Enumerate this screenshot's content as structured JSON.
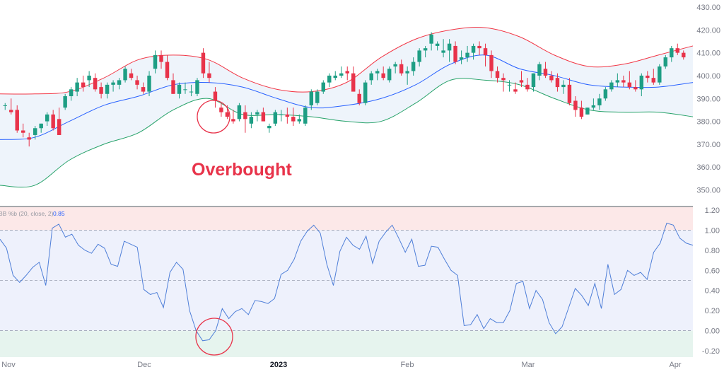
{
  "colors": {
    "upper_band": "#f23645",
    "lower_band": "#26a269",
    "basis": "#2962ff",
    "band_fill": "#eef4fb",
    "bull": "#1e9e84",
    "bear": "#e8334a",
    "pb_line": "#4f7fd8",
    "overbought_zone": "#fce8e8",
    "neutral_zone": "#eef1fc",
    "oversold_zone": "#e6f4ee",
    "annotation": "#e8334a",
    "grid": "#d1d4dc"
  },
  "chart_data": [
    {
      "type": "candlestick",
      "annotation": "Overbought",
      "ylim": [
        345,
        432
      ],
      "y_ticks": [
        "430.00",
        "420.00",
        "410.00",
        "400.00",
        "390.00",
        "380.00",
        "370.00",
        "360.00",
        "350.00"
      ],
      "x_ticks": [
        "Nov",
        "Dec",
        "2023",
        "Feb",
        "Mar",
        "Apr"
      ],
      "candles": [
        [
          387,
          388,
          385,
          387
        ],
        [
          385,
          390,
          383,
          384
        ],
        [
          385,
          387,
          375,
          376
        ],
        [
          376,
          379,
          373,
          375
        ],
        [
          373,
          375,
          369,
          372
        ],
        [
          374,
          378,
          372,
          377
        ],
        [
          377,
          379,
          375,
          379
        ],
        [
          380,
          384,
          378,
          383
        ],
        [
          383,
          385,
          376,
          377
        ],
        [
          381,
          386,
          374,
          374
        ],
        [
          386,
          392,
          385,
          391
        ],
        [
          391,
          395,
          389,
          394
        ],
        [
          393,
          399,
          391,
          397
        ],
        [
          397,
          400,
          393,
          395
        ],
        [
          398,
          402,
          395,
          400
        ],
        [
          399,
          401,
          393,
          394
        ],
        [
          395,
          397,
          390,
          392
        ],
        [
          392,
          397,
          390,
          396
        ],
        [
          396,
          398,
          393,
          397
        ],
        [
          396,
          399,
          394,
          398
        ],
        [
          398,
          404,
          397,
          403
        ],
        [
          401,
          403,
          398,
          399
        ],
        [
          398,
          400,
          394,
          396
        ],
        [
          395,
          397,
          392,
          393
        ],
        [
          393,
          402,
          391,
          400
        ],
        [
          403,
          411,
          401,
          409
        ],
        [
          409,
          411,
          403,
          406
        ],
        [
          406,
          409,
          398,
          399
        ],
        [
          398,
          401,
          392,
          392
        ],
        [
          392,
          397,
          390,
          396
        ],
        [
          394,
          397,
          392,
          394
        ],
        [
          393,
          396,
          391,
          393
        ],
        [
          392,
          399,
          391,
          398
        ],
        [
          410,
          412,
          399,
          401
        ],
        [
          401,
          406,
          397,
          399
        ],
        [
          393,
          395,
          386,
          389
        ],
        [
          386,
          388,
          382,
          384
        ],
        [
          384,
          387,
          381,
          382
        ],
        [
          381,
          385,
          379,
          380
        ],
        [
          381,
          388,
          380,
          387
        ],
        [
          384,
          387,
          375,
          381
        ],
        [
          379,
          384,
          377,
          382
        ],
        [
          383,
          385,
          380,
          384
        ],
        [
          384,
          386,
          380,
          380
        ],
        [
          377,
          379,
          375,
          378
        ],
        [
          379,
          385,
          378,
          384
        ],
        [
          383,
          385,
          380,
          383
        ],
        [
          383,
          386,
          379,
          382
        ],
        [
          382,
          386,
          378,
          380
        ],
        [
          380,
          383,
          379,
          381
        ],
        [
          379,
          387,
          378,
          386
        ],
        [
          387,
          394,
          385,
          393
        ],
        [
          388,
          394,
          387,
          393
        ],
        [
          393,
          398,
          392,
          397
        ],
        [
          397,
          401,
          395,
          400
        ],
        [
          399,
          402,
          398,
          400
        ],
        [
          400,
          404,
          399,
          401
        ],
        [
          402,
          404,
          398,
          401
        ],
        [
          401,
          404,
          393,
          393
        ],
        [
          392,
          394,
          387,
          388
        ],
        [
          388,
          398,
          387,
          397
        ],
        [
          398,
          402,
          396,
          401
        ],
        [
          401,
          403,
          398,
          402
        ],
        [
          401,
          404,
          398,
          399
        ],
        [
          398,
          404,
          397,
          403
        ],
        [
          404,
          406,
          401,
          405
        ],
        [
          405,
          407,
          400,
          401
        ],
        [
          401,
          404,
          396,
          402
        ],
        [
          402,
          408,
          400,
          406
        ],
        [
          406,
          412,
          404,
          411
        ],
        [
          411,
          413,
          408,
          412
        ],
        [
          414,
          419,
          411,
          418
        ],
        [
          413,
          415,
          411,
          414
        ],
        [
          410,
          416,
          408,
          411
        ],
        [
          411,
          416,
          406,
          414
        ],
        [
          413,
          415,
          405,
          406
        ],
        [
          407,
          411,
          405,
          408
        ],
        [
          408,
          413,
          406,
          410
        ],
        [
          410,
          414,
          407,
          413
        ],
        [
          413,
          415,
          409,
          412
        ],
        [
          412,
          414,
          404,
          409
        ],
        [
          409,
          411,
          399,
          402
        ],
        [
          402,
          404,
          397,
          399
        ],
        [
          399,
          401,
          393,
          398
        ],
        [
          396,
          398,
          393,
          396
        ],
        [
          394,
          397,
          392,
          393
        ],
        [
          398,
          402,
          395,
          397
        ],
        [
          396,
          399,
          393,
          394
        ],
        [
          395,
          401,
          393,
          401
        ],
        [
          400,
          406,
          398,
          405
        ],
        [
          403,
          406,
          399,
          400
        ],
        [
          400,
          402,
          397,
          398
        ],
        [
          399,
          401,
          393,
          395
        ],
        [
          395,
          398,
          392,
          396
        ],
        [
          396,
          399,
          387,
          388
        ],
        [
          389,
          391,
          382,
          385
        ],
        [
          386,
          389,
          381,
          382
        ],
        [
          383,
          386,
          383,
          386
        ],
        [
          386,
          390,
          385,
          387
        ],
        [
          387,
          392,
          385,
          390
        ],
        [
          390,
          395,
          389,
          394
        ],
        [
          394,
          398,
          393,
          397
        ],
        [
          397,
          401,
          395,
          398
        ],
        [
          398,
          400,
          395,
          397
        ],
        [
          397,
          402,
          394,
          395
        ],
        [
          395,
          398,
          393,
          394
        ],
        [
          394,
          401,
          391,
          400
        ],
        [
          400,
          402,
          397,
          399
        ],
        [
          399,
          403,
          396,
          397
        ],
        [
          397,
          405,
          396,
          404
        ],
        [
          404,
          409,
          403,
          408
        ],
        [
          408,
          413,
          406,
          412
        ],
        [
          412,
          414,
          409,
          410
        ],
        [
          410,
          411,
          407,
          408
        ]
      ],
      "upper_band": [
        [
          0,
          392
        ],
        [
          0.05,
          392
        ],
        [
          0.1,
          393
        ],
        [
          0.15,
          399
        ],
        [
          0.2,
          407
        ],
        [
          0.25,
          409
        ],
        [
          0.3,
          407
        ],
        [
          0.35,
          399
        ],
        [
          0.4,
          394
        ],
        [
          0.45,
          393
        ],
        [
          0.5,
          397
        ],
        [
          0.55,
          408
        ],
        [
          0.6,
          416
        ],
        [
          0.65,
          420
        ],
        [
          0.7,
          421
        ],
        [
          0.75,
          417
        ],
        [
          0.8,
          409
        ],
        [
          0.85,
          404
        ],
        [
          0.9,
          405
        ],
        [
          0.95,
          409
        ],
        [
          1,
          413
        ]
      ],
      "basis": [
        [
          0,
          372
        ],
        [
          0.05,
          373
        ],
        [
          0.1,
          380
        ],
        [
          0.15,
          387
        ],
        [
          0.2,
          391
        ],
        [
          0.25,
          396
        ],
        [
          0.3,
          397
        ],
        [
          0.35,
          395
        ],
        [
          0.4,
          390
        ],
        [
          0.45,
          386
        ],
        [
          0.5,
          387
        ],
        [
          0.55,
          390
        ],
        [
          0.6,
          396
        ],
        [
          0.65,
          405
        ],
        [
          0.7,
          409
        ],
        [
          0.75,
          403
        ],
        [
          0.8,
          400
        ],
        [
          0.85,
          396
        ],
        [
          0.9,
          395
        ],
        [
          0.95,
          395
        ],
        [
          1,
          397
        ]
      ],
      "lower_band": [
        [
          0,
          352
        ],
        [
          0.05,
          352
        ],
        [
          0.1,
          363
        ],
        [
          0.15,
          370
        ],
        [
          0.2,
          375
        ],
        [
          0.25,
          385
        ],
        [
          0.3,
          390
        ],
        [
          0.35,
          383
        ],
        [
          0.4,
          383
        ],
        [
          0.45,
          382
        ],
        [
          0.5,
          380
        ],
        [
          0.55,
          380
        ],
        [
          0.6,
          388
        ],
        [
          0.65,
          398
        ],
        [
          0.7,
          398
        ],
        [
          0.75,
          396
        ],
        [
          0.8,
          390
        ],
        [
          0.85,
          385
        ],
        [
          0.9,
          384
        ],
        [
          0.95,
          384
        ],
        [
          1,
          382
        ]
      ]
    },
    {
      "type": "line",
      "legend": "BB %b (20, close, 2)",
      "last_value": "0.85",
      "ylim": [
        -0.24,
        1.24
      ],
      "y_ticks": [
        "1.20",
        "1.00",
        "0.80",
        "0.60",
        "0.40",
        "0.20",
        "0.00",
        "-0.20"
      ],
      "zones": {
        "overbought": 1.0,
        "mid": 0.5,
        "oversold": 0.0
      },
      "values": [
        0.91,
        0.82,
        0.55,
        0.48,
        0.55,
        0.63,
        0.68,
        0.45,
        1.02,
        1.06,
        0.93,
        0.96,
        0.85,
        0.8,
        0.77,
        0.86,
        0.82,
        0.66,
        0.64,
        0.89,
        0.86,
        0.83,
        0.41,
        0.36,
        0.38,
        0.23,
        0.58,
        0.68,
        0.61,
        0.2,
        0.0,
        -0.1,
        -0.09,
        0.0,
        0.22,
        0.12,
        0.19,
        0.22,
        0.16,
        0.3,
        0.29,
        0.27,
        0.32,
        0.56,
        0.6,
        0.71,
        0.89,
        0.99,
        1.05,
        0.97,
        0.66,
        0.45,
        0.79,
        0.93,
        0.85,
        0.81,
        0.94,
        0.67,
        0.89,
        0.98,
        1.05,
        0.92,
        0.78,
        0.91,
        0.64,
        0.65,
        0.84,
        0.83,
        0.71,
        0.6,
        0.55,
        0.05,
        0.06,
        0.16,
        0.02,
        0.12,
        0.08,
        0.08,
        0.2,
        0.47,
        0.49,
        0.22,
        0.4,
        0.31,
        0.08,
        -0.03,
        0.04,
        0.23,
        0.42,
        0.35,
        0.25,
        0.47,
        0.22,
        0.66,
        0.36,
        0.41,
        0.6,
        0.55,
        0.58,
        0.51,
        0.78,
        0.87,
        1.07,
        1.05,
        0.92,
        0.87,
        0.85
      ]
    }
  ]
}
